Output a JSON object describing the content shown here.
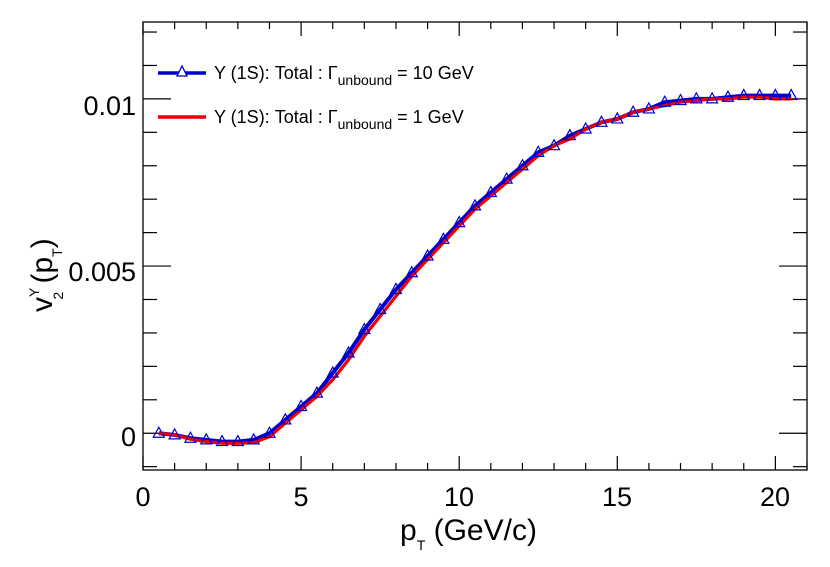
{
  "chart_data": {
    "type": "line",
    "title": "",
    "xlabel": {
      "base": "p",
      "sub": "T",
      "rest": " (GeV/c)"
    },
    "ylabel": {
      "base": "v",
      "sup": "Υ",
      "sub": "2",
      "open": " (p",
      "sub2": "T",
      "close": ")"
    },
    "xlim": [
      0,
      21
    ],
    "ylim": [
      -0.0011,
      0.0123
    ],
    "x_ticks": [
      0,
      5,
      10,
      15,
      20
    ],
    "x_tick_labels": [
      "0",
      "5",
      "10",
      "15",
      "20"
    ],
    "y_ticks": [
      0,
      0.005,
      0.01
    ],
    "y_tick_labels": [
      "0",
      "0.005",
      "0.01"
    ],
    "legend_position": "top-left",
    "series": [
      {
        "name": "Υ (1S): Total : Γunbound = 10 GeV",
        "legend": {
          "prefix": "Υ (1S): Total : ",
          "gamma": "Γ",
          "sub": "unbound",
          "suffix": " = 10 GeV"
        },
        "color": "#0000cc",
        "marker": "open-triangle",
        "x": [
          0.5,
          1.0,
          1.5,
          2.0,
          2.5,
          3.0,
          3.5,
          4.0,
          4.5,
          5.0,
          5.5,
          6.0,
          6.5,
          7.0,
          7.5,
          8.0,
          8.5,
          9.0,
          9.5,
          10.0,
          10.5,
          11.0,
          11.5,
          12.0,
          12.5,
          13.0,
          13.5,
          14.0,
          14.5,
          15.0,
          15.5,
          16.0,
          16.5,
          17.0,
          17.5,
          18.0,
          18.5,
          19.0,
          19.5,
          20.0,
          20.5
        ],
        "y": [
          0.0,
          -5e-05,
          -0.00015,
          -0.0002,
          -0.00025,
          -0.00025,
          -0.0002,
          0.0,
          0.0004,
          0.0008,
          0.0012,
          0.0018,
          0.0024,
          0.0031,
          0.0037,
          0.0043,
          0.0048,
          0.0053,
          0.0058,
          0.0063,
          0.0068,
          0.0072,
          0.0076,
          0.008,
          0.0084,
          0.0086,
          0.0089,
          0.0091,
          0.0093,
          0.0094,
          0.0096,
          0.0097,
          0.0099,
          0.00995,
          0.01,
          0.01,
          0.01005,
          0.0101,
          0.0101,
          0.0101,
          0.0101
        ]
      },
      {
        "name": "Υ (1S): Total : Γunbound = 1 GeV",
        "legend": {
          "prefix": "Υ (1S): Total : ",
          "gamma": "Γ",
          "sub": "unbound",
          "suffix": " = 1 GeV"
        },
        "color": "#ee0000",
        "marker": "none",
        "x": [
          0.5,
          1.0,
          1.5,
          2.0,
          2.5,
          3.0,
          3.5,
          4.0,
          4.5,
          5.0,
          5.5,
          6.0,
          6.5,
          7.0,
          7.5,
          8.0,
          8.5,
          9.0,
          9.5,
          10.0,
          10.5,
          11.0,
          11.5,
          12.0,
          12.5,
          13.0,
          13.5,
          14.0,
          14.5,
          15.0,
          15.5,
          16.0,
          16.5,
          17.0,
          17.5,
          18.0,
          18.5,
          19.0,
          19.5,
          20.0,
          20.5
        ],
        "y": [
          0.0,
          -5e-05,
          -0.00018,
          -0.00025,
          -0.0003,
          -0.0003,
          -0.00028,
          -0.0001,
          0.0003,
          0.0007,
          0.0011,
          0.0016,
          0.0022,
          0.0029,
          0.0035,
          0.0041,
          0.0047,
          0.0052,
          0.0057,
          0.0062,
          0.0067,
          0.0071,
          0.0075,
          0.0079,
          0.0083,
          0.0086,
          0.0088,
          0.0091,
          0.0093,
          0.0094,
          0.0096,
          0.0097,
          0.0098,
          0.0099,
          0.00995,
          0.01,
          0.01,
          0.01005,
          0.01005,
          0.01,
          0.01
        ]
      }
    ]
  }
}
